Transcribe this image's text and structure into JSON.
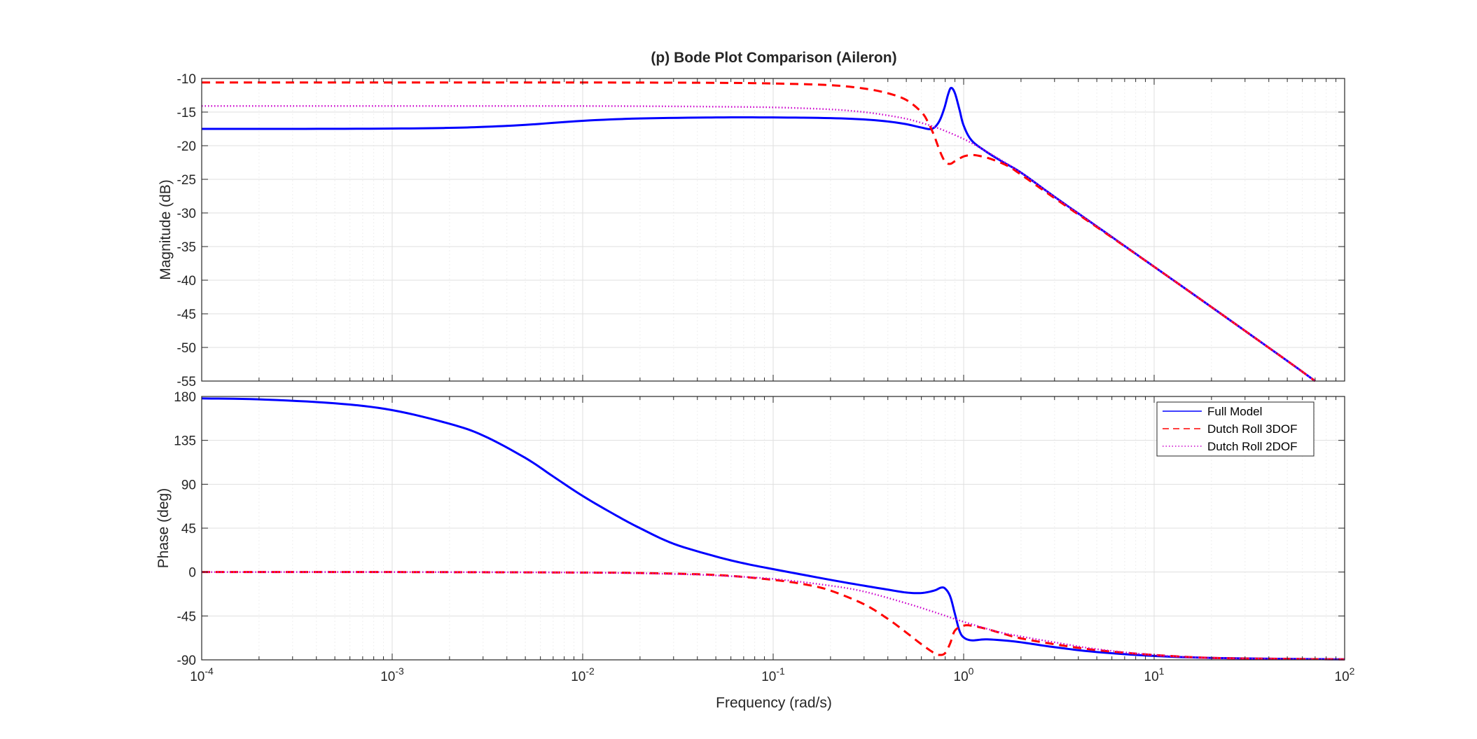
{
  "chart_data": [
    {
      "type": "line",
      "title": "(p) Bode Plot Comparison (Aileron)",
      "xlabel": "",
      "ylabel": "Magnitude (dB)",
      "xscale": "log",
      "xlim": [
        0.0001,
        100
      ],
      "ylim": [
        -55,
        -10
      ],
      "yticks": [
        -10,
        -15,
        -20,
        -25,
        -30,
        -35,
        -40,
        -45,
        -50,
        -55
      ],
      "grid": true,
      "series": [
        {
          "name": "Full Model",
          "style": "solid",
          "color": "#0000ff",
          "x": [
            0.0001,
            0.0003,
            0.001,
            0.002,
            0.003,
            0.005,
            0.01,
            0.02,
            0.05,
            0.1,
            0.2,
            0.3,
            0.4,
            0.5,
            0.6,
            0.68,
            0.74,
            0.79,
            0.83,
            0.86,
            0.9,
            0.95,
            1.0,
            1.1,
            1.3,
            1.6,
            2.0,
            3.0,
            5.0,
            10.0,
            20.0,
            50.0,
            70.0
          ],
          "y": [
            -17.5,
            -17.5,
            -17.45,
            -17.35,
            -17.2,
            -16.9,
            -16.3,
            -15.95,
            -15.8,
            -15.8,
            -15.9,
            -16.1,
            -16.4,
            -16.8,
            -17.3,
            -17.5,
            -16.5,
            -14.5,
            -12.3,
            -11.4,
            -12.2,
            -14.6,
            -17.0,
            -19.2,
            -20.8,
            -22.4,
            -24.0,
            -27.6,
            -32.0,
            -38.0,
            -44.0,
            -52.0,
            -55.0
          ]
        },
        {
          "name": "Dutch Roll 3DOF",
          "style": "dashed",
          "color": "#ff0000",
          "x": [
            0.0001,
            0.001,
            0.01,
            0.05,
            0.1,
            0.2,
            0.3,
            0.4,
            0.5,
            0.6,
            0.65,
            0.7,
            0.75,
            0.8,
            0.85,
            0.9,
            1.0,
            1.1,
            1.2,
            1.4,
            1.7,
            2.0,
            3.0,
            5.0,
            10.0,
            20.0,
            50.0,
            70.0
          ],
          "y": [
            -10.6,
            -10.6,
            -10.6,
            -10.65,
            -10.75,
            -11.0,
            -11.5,
            -12.2,
            -13.2,
            -15.0,
            -16.5,
            -18.5,
            -20.8,
            -22.4,
            -22.7,
            -22.3,
            -21.6,
            -21.4,
            -21.5,
            -22.0,
            -23.0,
            -24.3,
            -27.8,
            -32.1,
            -38.0,
            -44.0,
            -52.0,
            -55.0
          ]
        },
        {
          "name": "Dutch Roll 2DOF",
          "style": "dotted",
          "color": "#cc00cc",
          "x": [
            0.0001,
            0.001,
            0.01,
            0.03,
            0.05,
            0.1,
            0.2,
            0.3,
            0.4,
            0.5,
            0.6,
            0.7,
            0.8,
            1.0,
            1.2,
            1.5,
            2.0,
            3.0,
            5.0,
            10.0,
            20.0,
            50.0,
            70.0
          ],
          "y": [
            -14.1,
            -14.1,
            -14.1,
            -14.15,
            -14.2,
            -14.3,
            -14.6,
            -15.0,
            -15.5,
            -16.0,
            -16.6,
            -17.2,
            -17.8,
            -19.0,
            -20.2,
            -21.8,
            -24.0,
            -27.6,
            -32.0,
            -38.0,
            -44.0,
            -52.0,
            -55.0
          ]
        }
      ]
    },
    {
      "type": "line",
      "title": "",
      "xlabel": "Frequency  (rad/s)",
      "ylabel": "Phase (deg)",
      "xscale": "log",
      "xlim": [
        0.0001,
        100
      ],
      "ylim": [
        -90,
        180
      ],
      "yticks": [
        180,
        135,
        90,
        45,
        0,
        -45,
        -90
      ],
      "xticks": [
        0.0001,
        0.001,
        0.01,
        0.1,
        1,
        10,
        100
      ],
      "xtick_labels": [
        {
          "base": "10",
          "exp": "-4"
        },
        {
          "base": "10",
          "exp": "-3"
        },
        {
          "base": "10",
          "exp": "-2"
        },
        {
          "base": "10",
          "exp": "-1"
        },
        {
          "base": "10",
          "exp": "0"
        },
        {
          "base": "10",
          "exp": "1"
        },
        {
          "base": "10",
          "exp": "2"
        }
      ],
      "grid": true,
      "legend_position": "top-right",
      "series": [
        {
          "name": "Full Model",
          "style": "solid",
          "color": "#0000ff",
          "x": [
            0.0001,
            0.0002,
            0.0005,
            0.001,
            0.002,
            0.003,
            0.005,
            0.007,
            0.01,
            0.015,
            0.02,
            0.03,
            0.05,
            0.07,
            0.1,
            0.2,
            0.3,
            0.4,
            0.5,
            0.6,
            0.7,
            0.76,
            0.8,
            0.85,
            0.9,
            0.95,
            1.0,
            1.1,
            1.3,
            1.6,
            2.0,
            3.0,
            5.0,
            10.0,
            20.0,
            50.0,
            100.0
          ],
          "y": [
            178,
            177,
            173,
            166,
            152,
            140,
            117,
            98,
            78,
            58,
            45,
            29,
            16,
            9,
            3,
            -8,
            -14,
            -18,
            -21,
            -21.5,
            -19,
            -16,
            -17,
            -25,
            -43,
            -60,
            -67,
            -70,
            -69,
            -70,
            -72,
            -77,
            -82,
            -86,
            -88,
            -89,
            -89.5
          ]
        },
        {
          "name": "Dutch Roll 3DOF",
          "style": "dashed",
          "color": "#ff0000",
          "x": [
            0.0001,
            0.001,
            0.01,
            0.02,
            0.05,
            0.1,
            0.15,
            0.2,
            0.3,
            0.4,
            0.5,
            0.6,
            0.7,
            0.75,
            0.8,
            0.85,
            0.9,
            1.0,
            1.1,
            1.3,
            1.6,
            2.0,
            3.0,
            5.0,
            10.0,
            20.0,
            50.0,
            100.0
          ],
          "y": [
            0,
            0,
            -0.5,
            -1,
            -3,
            -8,
            -13,
            -19,
            -33,
            -48,
            -62,
            -74,
            -83,
            -85,
            -83,
            -73,
            -60,
            -55,
            -55,
            -58,
            -63,
            -68,
            -74,
            -80,
            -85,
            -88,
            -89,
            -89.5
          ]
        },
        {
          "name": "Dutch Roll 2DOF",
          "style": "dotted",
          "color": "#cc00cc",
          "x": [
            0.0001,
            0.001,
            0.01,
            0.03,
            0.05,
            0.1,
            0.2,
            0.3,
            0.5,
            0.7,
            1.0,
            1.5,
            2.0,
            3.0,
            5.0,
            10.0,
            20.0,
            50.0,
            100.0
          ],
          "y": [
            0,
            0,
            -0.5,
            -2,
            -3.5,
            -7,
            -14,
            -20,
            -32,
            -41,
            -51,
            -61,
            -66,
            -72,
            -79,
            -85,
            -88,
            -89,
            -89.5
          ]
        }
      ]
    }
  ],
  "colors": {
    "axes_line": "#262626",
    "grid_major": "#dfdfdf",
    "grid_minor": "#efefef",
    "full_model": "#0000ff",
    "dutch_roll_3dof": "#ff0000",
    "dutch_roll_2dof": "#cc00cc"
  }
}
